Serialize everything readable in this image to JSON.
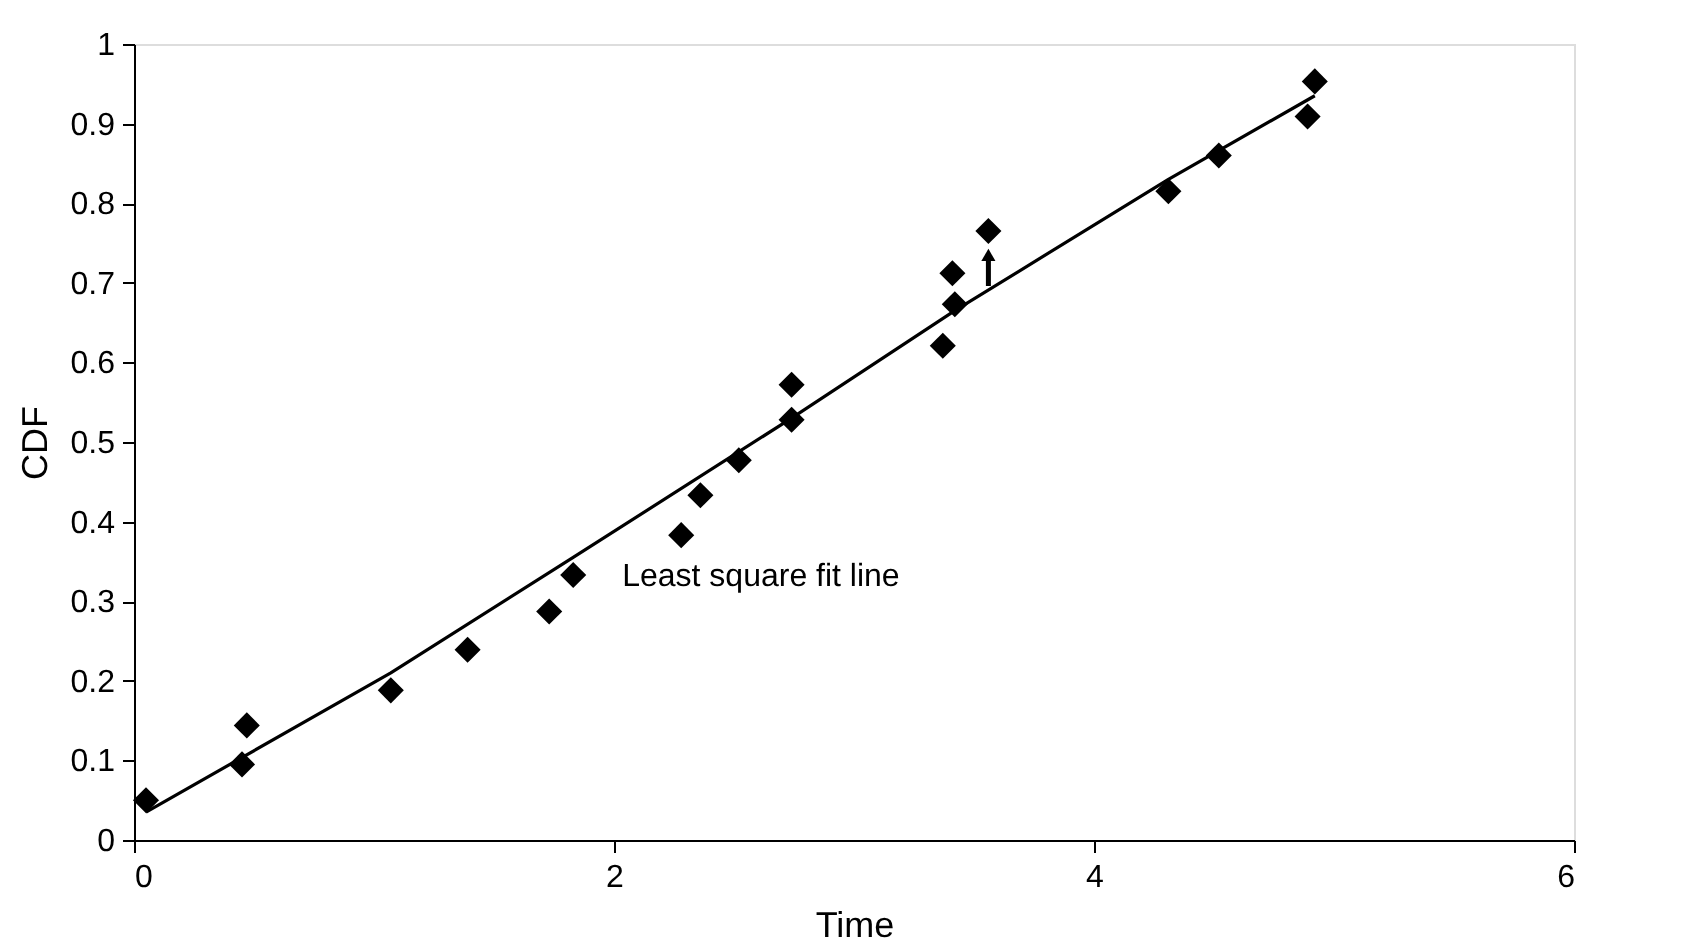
{
  "chart_data": {
    "type": "scatter",
    "xlabel": "Time",
    "ylabel": "CDF",
    "xlim": [
      0,
      6
    ],
    "xticks": [
      0,
      2,
      4,
      6
    ],
    "ylim": [
      0,
      1
    ],
    "yticks": [
      0,
      0.1,
      0.2,
      0.3,
      0.4,
      0.5,
      0.6,
      0.7,
      0.8,
      0.9,
      1
    ],
    "grid": false,
    "annotations": [
      "Least square fit line"
    ],
    "series": [
      {
        "type": "scatter",
        "color": "#000000",
        "marker": "diamond",
        "x": [
          0.05,
          0.45,
          0.47,
          1.07,
          1.39,
          1.73,
          1.83,
          2.28,
          2.36,
          2.52,
          2.74,
          2.74,
          3.37,
          3.42,
          3.41,
          3.56,
          4.31,
          4.52,
          4.89,
          4.92
        ],
        "values": [
          0.05,
          0.095,
          0.144,
          0.188,
          0.239,
          0.287,
          0.333,
          0.383,
          0.433,
          0.477,
          0.528,
          0.572,
          0.621,
          0.673,
          0.712,
          0.765,
          0.815,
          0.86,
          0.909,
          0.953
        ]
      },
      {
        "type": "line",
        "color": "#000000",
        "line_style": "solid",
        "x": [
          0.05,
          1.07,
          1.83,
          2.74,
          3.42,
          4.31,
          4.92
        ],
        "values": [
          0.035,
          0.21,
          0.355,
          0.53,
          0.665,
          0.83,
          0.935
        ]
      }
    ]
  }
}
